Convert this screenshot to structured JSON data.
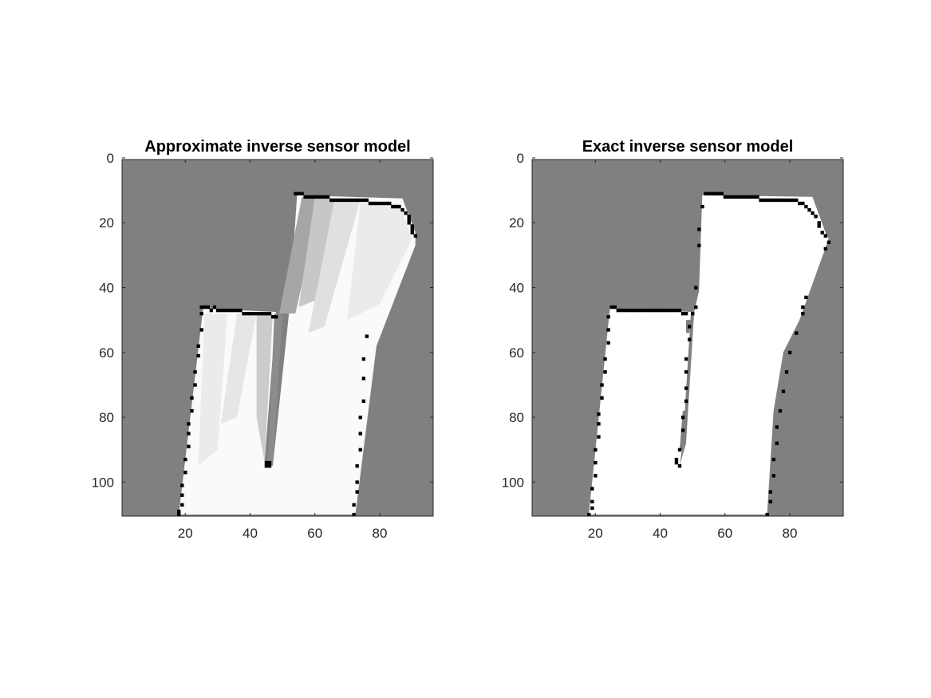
{
  "chart_data": [
    {
      "type": "heatmap",
      "title": "Approximate inverse sensor model",
      "xlabel": "",
      "ylabel": "",
      "xlim": [
        0.5,
        96.5
      ],
      "ylim": [
        0.5,
        110.5
      ],
      "y_reversed": true,
      "xticks": [
        20,
        40,
        60,
        80
      ],
      "yticks": [
        0,
        20,
        40,
        60,
        80,
        100
      ],
      "grid": false,
      "colormap": "gray",
      "values_meaning": "occupancy probability (0 = free/white, 0.5 = unknown/gray, 1 = occupied/black)",
      "unknown_value": 0.5,
      "free_regions": [
        {
          "polygon": [
            [
              18,
              110
            ],
            [
              25.5,
              46.5
            ],
            [
              48,
              47.5
            ],
            [
              44.5,
              94
            ],
            [
              47,
              95
            ],
            [
              52,
              48
            ],
            [
              54.5,
              11.5
            ],
            [
              87,
              12.5
            ],
            [
              91,
              23
            ],
            [
              91,
              27
            ],
            [
              79,
              58
            ],
            [
              72.5,
              110
            ]
          ],
          "value": 0.02
        }
      ],
      "partial_regions": [
        {
          "polygon": [
            [
              56,
              12
            ],
            [
              62,
              12
            ],
            [
              54,
              48
            ],
            [
              49,
              48
            ]
          ],
          "value": 0.35
        },
        {
          "polygon": [
            [
              60,
              12
            ],
            [
              67,
              13
            ],
            [
              60,
              44
            ],
            [
              55,
              46
            ]
          ],
          "value": 0.22
        },
        {
          "polygon": [
            [
              66,
              13
            ],
            [
              74,
              13
            ],
            [
              63,
              52
            ],
            [
              58,
              54
            ]
          ],
          "value": 0.12
        },
        {
          "polygon": [
            [
              26,
              48
            ],
            [
              33,
              48
            ],
            [
              30,
              90
            ],
            [
              24,
              95
            ]
          ],
          "value": 0.08
        },
        {
          "polygon": [
            [
              36,
              48
            ],
            [
              42,
              48
            ],
            [
              36,
              80
            ],
            [
              31,
              82
            ]
          ],
          "value": 0.1
        },
        {
          "polygon": [
            [
              42,
              48
            ],
            [
              47,
              48
            ],
            [
              44.5,
              94
            ],
            [
              42,
              80
            ]
          ],
          "value": 0.2
        },
        {
          "polygon": [
            [
              47.5,
              48
            ],
            [
              50,
              48
            ],
            [
              47,
              95
            ],
            [
              45.5,
              95
            ]
          ],
          "value": 0.45
        },
        {
          "polygon": [
            [
              74,
              14
            ],
            [
              86,
              14
            ],
            [
              90,
              25
            ],
            [
              80,
              45
            ],
            [
              70,
              50
            ]
          ],
          "value": 0.08
        }
      ],
      "occupied_cells": [
        [
          25,
          46
        ],
        [
          26,
          46
        ],
        [
          27,
          46
        ],
        [
          28,
          47
        ],
        [
          29,
          46
        ],
        [
          30,
          47
        ],
        [
          31,
          47
        ],
        [
          32,
          47
        ],
        [
          33,
          47
        ],
        [
          34,
          47
        ],
        [
          35,
          47
        ],
        [
          36,
          47
        ],
        [
          37,
          47
        ],
        [
          38,
          48
        ],
        [
          39,
          48
        ],
        [
          40,
          48
        ],
        [
          41,
          48
        ],
        [
          42,
          48
        ],
        [
          43,
          48
        ],
        [
          44,
          48
        ],
        [
          45,
          48
        ],
        [
          46,
          48
        ],
        [
          47,
          49
        ],
        [
          48,
          49
        ],
        [
          25,
          48
        ],
        [
          25,
          53
        ],
        [
          24,
          58
        ],
        [
          24,
          61
        ],
        [
          23,
          66
        ],
        [
          23,
          70
        ],
        [
          22,
          74
        ],
        [
          22,
          78
        ],
        [
          21,
          82
        ],
        [
          21,
          85
        ],
        [
          21,
          89
        ],
        [
          20,
          93
        ],
        [
          20,
          97
        ],
        [
          19,
          101
        ],
        [
          19,
          104
        ],
        [
          19,
          107
        ],
        [
          18,
          109
        ],
        [
          18,
          110
        ],
        [
          54,
          11
        ],
        [
          55,
          11
        ],
        [
          56,
          11
        ],
        [
          57,
          12
        ],
        [
          58,
          12
        ],
        [
          59,
          12
        ],
        [
          60,
          12
        ],
        [
          61,
          12
        ],
        [
          62,
          12
        ],
        [
          63,
          12
        ],
        [
          64,
          12
        ],
        [
          65,
          13
        ],
        [
          66,
          13
        ],
        [
          67,
          13
        ],
        [
          68,
          13
        ],
        [
          69,
          13
        ],
        [
          70,
          13
        ],
        [
          71,
          13
        ],
        [
          72,
          13
        ],
        [
          73,
          13
        ],
        [
          74,
          13
        ],
        [
          75,
          13
        ],
        [
          76,
          13
        ],
        [
          77,
          14
        ],
        [
          78,
          14
        ],
        [
          79,
          14
        ],
        [
          80,
          14
        ],
        [
          81,
          14
        ],
        [
          82,
          14
        ],
        [
          83,
          14
        ],
        [
          84,
          15
        ],
        [
          85,
          15
        ],
        [
          86,
          15
        ],
        [
          87,
          16
        ],
        [
          88,
          17
        ],
        [
          89,
          18
        ],
        [
          89,
          19
        ],
        [
          89,
          20
        ],
        [
          90,
          21
        ],
        [
          90,
          22
        ],
        [
          90,
          23
        ],
        [
          91,
          24
        ],
        [
          45,
          94
        ],
        [
          45,
          95
        ],
        [
          46,
          94
        ],
        [
          46,
          95
        ],
        [
          76,
          55
        ],
        [
          75,
          62
        ],
        [
          75,
          68
        ],
        [
          75,
          75
        ],
        [
          74,
          80
        ],
        [
          74,
          85
        ],
        [
          74,
          90
        ],
        [
          73,
          95
        ],
        [
          73,
          100
        ],
        [
          73,
          103
        ],
        [
          72,
          107
        ],
        [
          72,
          110
        ]
      ]
    },
    {
      "type": "heatmap",
      "title": "Exact inverse sensor model",
      "xlabel": "",
      "ylabel": "",
      "xlim": [
        0.5,
        96.5
      ],
      "ylim": [
        0.5,
        110.5
      ],
      "y_reversed": true,
      "xticks": [
        20,
        40,
        60,
        80
      ],
      "yticks": [
        0,
        20,
        40,
        60,
        80,
        100
      ],
      "grid": false,
      "colormap": "gray",
      "values_meaning": "occupancy probability (0 = free/white, 0.5 = unknown/gray, 1 = occupied/black)",
      "unknown_value": 0.5,
      "free_regions": [
        {
          "polygon": [
            [
              18,
              110
            ],
            [
              24.5,
              46.5
            ],
            [
              49.5,
              47.5
            ],
            [
              47,
              88
            ],
            [
              46,
              95
            ],
            [
              48,
              88
            ],
            [
              50.5,
              47.5
            ],
            [
              52,
              41
            ],
            [
              53,
              11.5
            ],
            [
              87,
              12
            ],
            [
              91,
              23
            ],
            [
              92,
              25
            ],
            [
              83,
              50
            ],
            [
              78,
              60
            ],
            [
              75,
              78
            ],
            [
              73,
              110
            ]
          ],
          "value": 0.0
        }
      ],
      "partial_regions": [
        {
          "polygon": [
            [
              47,
              78
            ],
            [
              48,
              78
            ],
            [
              47,
              90
            ],
            [
              46,
              90
            ]
          ],
          "value": 0.5
        },
        {
          "polygon": [
            [
              48,
              50
            ],
            [
              49.5,
              50
            ],
            [
              49,
              54
            ],
            [
              48,
              54
            ]
          ],
          "value": 0.5
        }
      ],
      "occupied_cells": [
        [
          54,
          11
        ],
        [
          55,
          11
        ],
        [
          56,
          11
        ],
        [
          57,
          11
        ],
        [
          58,
          11
        ],
        [
          59,
          11
        ],
        [
          60,
          12
        ],
        [
          61,
          12
        ],
        [
          62,
          12
        ],
        [
          63,
          12
        ],
        [
          64,
          12
        ],
        [
          65,
          12
        ],
        [
          66,
          12
        ],
        [
          67,
          12
        ],
        [
          68,
          12
        ],
        [
          69,
          12
        ],
        [
          70,
          12
        ],
        [
          71,
          13
        ],
        [
          72,
          13
        ],
        [
          73,
          13
        ],
        [
          74,
          13
        ],
        [
          75,
          13
        ],
        [
          76,
          13
        ],
        [
          77,
          13
        ],
        [
          78,
          13
        ],
        [
          79,
          13
        ],
        [
          80,
          13
        ],
        [
          81,
          13
        ],
        [
          82,
          13
        ],
        [
          83,
          14
        ],
        [
          84,
          14
        ],
        [
          85,
          15
        ],
        [
          86,
          16
        ],
        [
          87,
          17
        ],
        [
          88,
          18
        ],
        [
          89,
          20
        ],
        [
          89,
          21
        ],
        [
          90,
          23
        ],
        [
          91,
          24
        ],
        [
          92,
          26
        ],
        [
          91,
          28
        ],
        [
          25,
          46
        ],
        [
          26,
          46
        ],
        [
          27,
          47
        ],
        [
          28,
          47
        ],
        [
          29,
          47
        ],
        [
          30,
          47
        ],
        [
          31,
          47
        ],
        [
          32,
          47
        ],
        [
          33,
          47
        ],
        [
          34,
          47
        ],
        [
          35,
          47
        ],
        [
          36,
          47
        ],
        [
          37,
          47
        ],
        [
          38,
          47
        ],
        [
          39,
          47
        ],
        [
          40,
          47
        ],
        [
          41,
          47
        ],
        [
          42,
          47
        ],
        [
          43,
          47
        ],
        [
          44,
          47
        ],
        [
          45,
          47
        ],
        [
          46,
          47
        ],
        [
          47,
          48
        ],
        [
          48,
          48
        ],
        [
          53,
          15
        ],
        [
          52,
          22
        ],
        [
          52,
          27
        ],
        [
          51,
          40
        ],
        [
          51,
          46
        ],
        [
          50,
          48
        ],
        [
          49,
          52
        ],
        [
          49,
          56
        ],
        [
          48,
          62
        ],
        [
          48,
          66
        ],
        [
          48,
          71
        ],
        [
          48,
          75
        ],
        [
          47,
          80
        ],
        [
          47,
          84
        ],
        [
          46,
          90
        ],
        [
          45,
          94
        ],
        [
          46,
          95
        ],
        [
          45,
          93
        ],
        [
          24,
          49
        ],
        [
          24,
          53
        ],
        [
          24,
          57
        ],
        [
          23,
          62
        ],
        [
          23,
          66
        ],
        [
          22,
          70
        ],
        [
          22,
          74
        ],
        [
          21,
          79
        ],
        [
          21,
          82
        ],
        [
          21,
          86
        ],
        [
          20,
          90
        ],
        [
          20,
          94
        ],
        [
          20,
          98
        ],
        [
          19,
          102
        ],
        [
          19,
          106
        ],
        [
          19,
          108
        ],
        [
          18,
          110
        ],
        [
          85,
          43
        ],
        [
          84,
          46
        ],
        [
          84,
          48
        ],
        [
          82,
          54
        ],
        [
          80,
          60
        ],
        [
          79,
          66
        ],
        [
          78,
          72
        ],
        [
          77,
          78
        ],
        [
          76,
          83
        ],
        [
          76,
          88
        ],
        [
          75,
          93
        ],
        [
          75,
          98
        ],
        [
          74,
          103
        ],
        [
          74,
          106
        ],
        [
          73,
          110
        ]
      ]
    }
  ]
}
